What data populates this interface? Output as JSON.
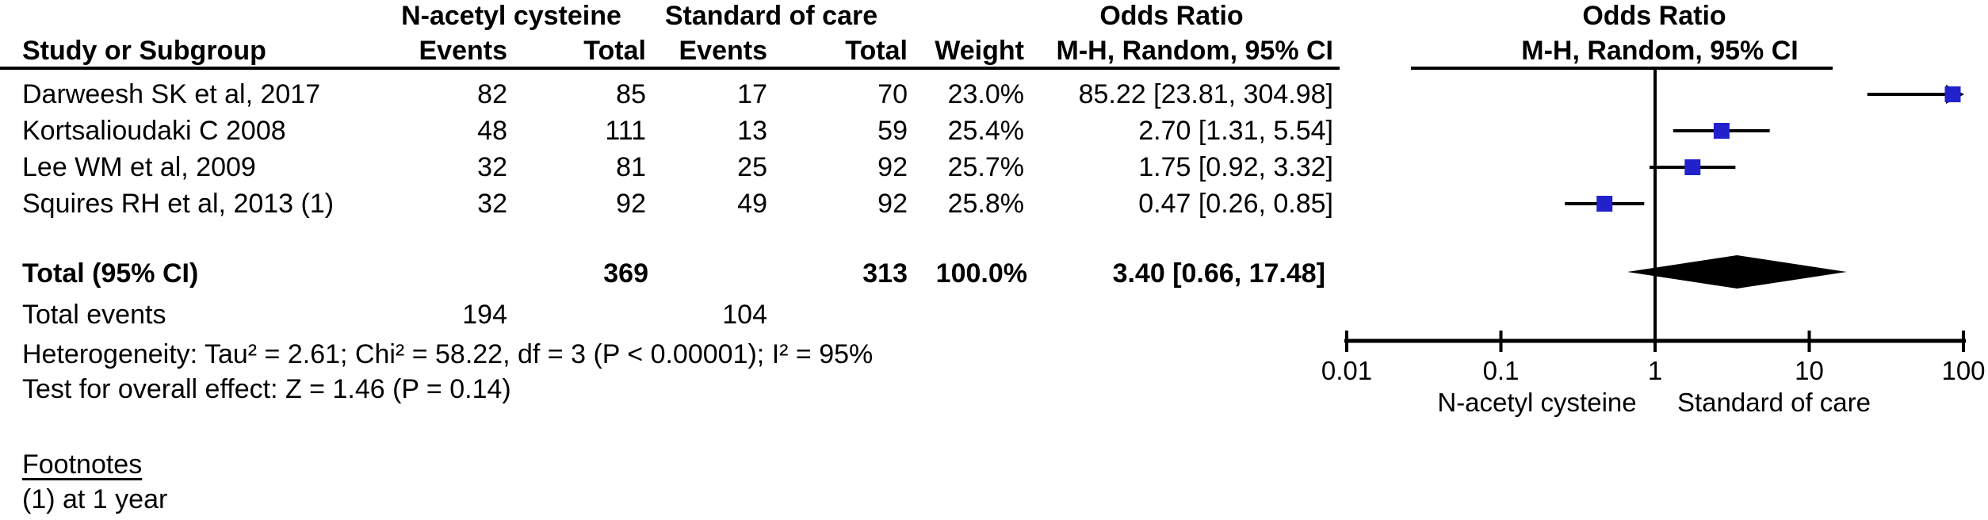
{
  "table": {
    "group_headers": {
      "nac": "N-acetyl cysteine",
      "soc": "Standard of care",
      "or_stat": "Odds Ratio",
      "or_plot": "Odds Ratio"
    },
    "col_headers": {
      "study": "Study or Subgroup",
      "nac_events": "Events",
      "nac_total": "Total",
      "soc_events": "Events",
      "soc_total": "Total",
      "weight": "Weight",
      "or_ci_stat": "M-H, Random, 95% CI",
      "or_ci_plot": "M-H, Random, 95% CI"
    },
    "rows": [
      {
        "study": "Darweesh SK et al, 2017",
        "nac_events": "82",
        "nac_total": "85",
        "soc_events": "17",
        "soc_total": "70",
        "weight": "23.0%",
        "or_ci": "85.22 [23.81, 304.98]"
      },
      {
        "study": "Kortsalioudaki C 2008",
        "nac_events": "48",
        "nac_total": "111",
        "soc_events": "13",
        "soc_total": "59",
        "weight": "25.4%",
        "or_ci": "2.70 [1.31, 5.54]"
      },
      {
        "study": "Lee WM et al, 2009",
        "nac_events": "32",
        "nac_total": "81",
        "soc_events": "25",
        "soc_total": "92",
        "weight": "25.7%",
        "or_ci": "1.75 [0.92, 3.32]"
      },
      {
        "study": "Squires RH et al, 2013 (1)",
        "nac_events": "32",
        "nac_total": "92",
        "soc_events": "49",
        "soc_total": "92",
        "weight": "25.8%",
        "or_ci": "0.47 [0.26, 0.85]"
      }
    ],
    "total_row": {
      "label": "Total (95% CI)",
      "nac_total": "369",
      "soc_total": "313",
      "weight": "100.0%",
      "or_ci": "3.40 [0.66, 17.48]"
    },
    "total_events": {
      "label": "Total events",
      "nac": "194",
      "soc": "104"
    },
    "heterogeneity": "Heterogeneity: Tau² = 2.61; Chi² = 58.22, df = 3 (P < 0.00001); I² = 95%",
    "overall_effect": "Test for overall effect: Z = 1.46 (P = 0.14)",
    "footnotes_title": "Footnotes",
    "footnote_1": "(1) at 1 year"
  },
  "chart_data": {
    "type": "scatter",
    "subtype": "forest-plot",
    "scale": "log10",
    "xlim": [
      0.01,
      100
    ],
    "x_ticks": [
      0.01,
      0.1,
      1,
      10,
      100
    ],
    "tick_labels": [
      "0.01",
      "0.1",
      "1",
      "10",
      "100"
    ],
    "null_line": 1,
    "xlabel_left": "N-acetyl cysteine",
    "xlabel_right": "Standard of care",
    "legend_position": "none",
    "grid": false,
    "marker_color": "#2222CC",
    "line_color": "#000000",
    "studies": [
      {
        "name": "Darweesh SK et al, 2017",
        "or": 85.22,
        "ci_low": 23.81,
        "ci_high": 304.98,
        "weight_pct": 23.0
      },
      {
        "name": "Kortsalioudaki C 2008",
        "or": 2.7,
        "ci_low": 1.31,
        "ci_high": 5.54,
        "weight_pct": 25.4
      },
      {
        "name": "Lee WM et al, 2009",
        "or": 1.75,
        "ci_low": 0.92,
        "ci_high": 3.32,
        "weight_pct": 25.7
      },
      {
        "name": "Squires RH et al, 2013 (1)",
        "or": 0.47,
        "ci_low": 0.26,
        "ci_high": 0.85,
        "weight_pct": 25.8
      }
    ],
    "total": {
      "or": 3.4,
      "ci_low": 0.66,
      "ci_high": 17.48
    }
  }
}
